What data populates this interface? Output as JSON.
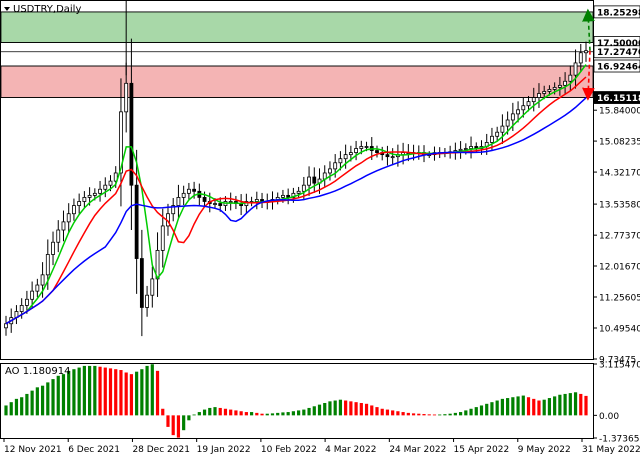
{
  "symbol_title": "USDTRY,Daily",
  "ao_title": "AO 1.180914",
  "colors": {
    "up_candle": "#000000",
    "ma_fast": "#00cc00",
    "ma_mid": "#ff0000",
    "ma_slow": "#0000ff",
    "ao_up": "#008000",
    "ao_down": "#ff0000",
    "zone_green": "#a8d8a8",
    "zone_red": "#f4b4b4"
  },
  "chart_data": [
    {
      "type": "candlestick",
      "title": "USDTRY,Daily",
      "x_ticks": [
        "12 Nov 2021",
        "6 Dec 2021",
        "28 Dec 2021",
        "19 Jan 2022",
        "10 Feb 2022",
        "4 Mar 2022",
        "24 Mar 2022",
        "15 Apr 2022",
        "9 May 2022",
        "31 May 2022"
      ],
      "y_ticks": [
        "15.84000",
        "15.08235",
        "14.32170",
        "13.53580",
        "12.77370",
        "12.01670",
        "11.25605",
        "10.49540",
        "9.73475"
      ],
      "ylim": [
        9.73475,
        18.52
      ],
      "price_labels": [
        {
          "value": "18.25298",
          "style": "white"
        },
        {
          "value": "17.50000",
          "style": "white"
        },
        {
          "value": "17.27470",
          "style": "white"
        },
        {
          "value": "16.92464",
          "style": "white"
        },
        {
          "value": "16.15118",
          "style": "black"
        }
      ],
      "zones": [
        {
          "name": "target-zone",
          "from": 17.5,
          "to": 18.25298
        },
        {
          "name": "stop-zone",
          "from": 16.15118,
          "to": 16.92464
        }
      ],
      "forecast_arrows": [
        {
          "name": "bullish",
          "to": 18.25298
        },
        {
          "name": "bearish",
          "to": 16.15118
        }
      ],
      "close_series": [
        10.6,
        10.75,
        10.9,
        11.05,
        11.2,
        11.4,
        11.55,
        11.8,
        12.3,
        12.6,
        12.9,
        13.1,
        13.3,
        13.5,
        13.6,
        13.7,
        13.75,
        13.8,
        13.9,
        14.0,
        14.1,
        14.3,
        15.8,
        16.5,
        14.0,
        12.2,
        11.0,
        11.3,
        11.7,
        12.4,
        13.0,
        13.3,
        13.5,
        13.7,
        13.8,
        13.9,
        13.85,
        13.7,
        13.6,
        13.55,
        13.55,
        13.5,
        13.6,
        13.6,
        13.55,
        13.5,
        13.6,
        13.6,
        13.65,
        13.6,
        13.6,
        13.65,
        13.7,
        13.75,
        13.7,
        13.8,
        13.85,
        14.0,
        14.2,
        14.05,
        14.15,
        14.3,
        14.4,
        14.55,
        14.65,
        14.75,
        14.8,
        14.9,
        14.95,
        14.95,
        14.85,
        14.8,
        14.75,
        14.7,
        14.7,
        14.75,
        14.8,
        14.8,
        14.8,
        14.8,
        14.75,
        14.75,
        14.8,
        14.8,
        14.8,
        14.82,
        14.85,
        14.88,
        14.9,
        14.95,
        14.9,
        14.95,
        15.05,
        15.2,
        15.3,
        15.45,
        15.6,
        15.75,
        15.85,
        15.95,
        16.05,
        16.15,
        16.25,
        16.3,
        16.35,
        16.4,
        16.45,
        16.55,
        16.7,
        17.0,
        17.25,
        17.3
      ]
    },
    {
      "type": "bar",
      "title": "AO 1.180914",
      "y_ticks": [
        "3.115470",
        "0.00",
        "-1.373659"
      ],
      "ylim": [
        -1.373659,
        3.11547
      ],
      "values": [
        0.6,
        0.8,
        1.0,
        1.1,
        1.3,
        1.5,
        1.7,
        1.8,
        2.0,
        2.2,
        2.4,
        2.5,
        2.7,
        2.8,
        2.9,
        3.0,
        3.0,
        3.0,
        2.95,
        2.9,
        2.85,
        2.8,
        2.75,
        2.6,
        2.5,
        2.65,
        2.8,
        3.0,
        3.1,
        2.7,
        0.4,
        -0.7,
        -1.2,
        -1.35,
        -0.9,
        -0.3,
        0.05,
        0.2,
        0.35,
        0.45,
        0.5,
        0.45,
        0.4,
        0.35,
        0.3,
        0.25,
        0.2,
        0.2,
        0.15,
        0.1,
        0.1,
        0.12,
        0.15,
        0.18,
        0.2,
        0.25,
        0.3,
        0.35,
        0.45,
        0.55,
        0.65,
        0.75,
        0.85,
        0.9,
        0.95,
        0.9,
        0.85,
        0.8,
        0.75,
        0.7,
        0.6,
        0.5,
        0.4,
        0.35,
        0.3,
        0.25,
        0.2,
        0.15,
        0.12,
        0.1,
        0.08,
        0.06,
        0.05,
        0.05,
        0.07,
        0.1,
        0.15,
        0.2,
        0.3,
        0.4,
        0.5,
        0.6,
        0.7,
        0.8,
        0.9,
        1.0,
        1.05,
        1.1,
        1.15,
        1.2,
        1.1,
        1.0,
        0.9,
        0.95,
        1.05,
        1.15,
        1.25,
        1.3,
        1.35,
        1.4,
        1.3,
        1.18
      ]
    }
  ]
}
